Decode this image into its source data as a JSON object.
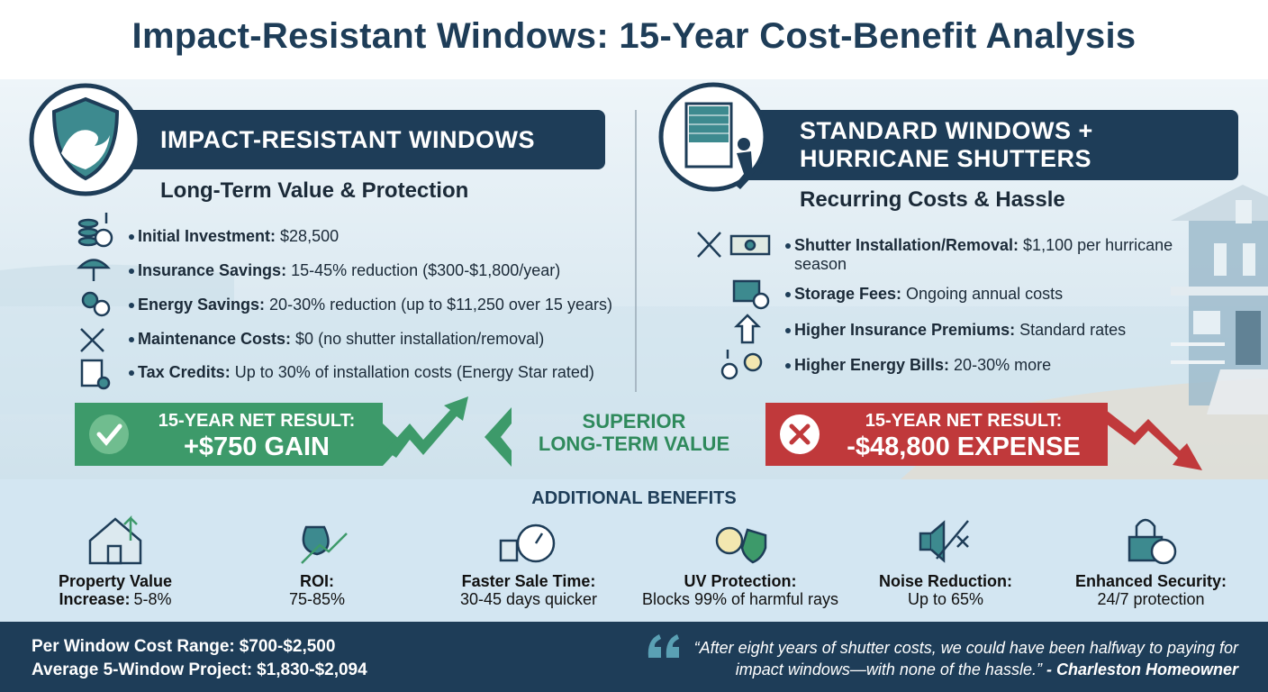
{
  "title": "Impact-Resistant Windows: 15-Year Cost-Benefit Analysis",
  "left": {
    "heading": "IMPACT-RESISTANT WINDOWS",
    "subheading": "Long-Term Value & Protection",
    "items": [
      {
        "label": "Initial Investment:",
        "text": "$28,500"
      },
      {
        "label": "Insurance Savings:",
        "text": "15-45% reduction ($300-$1,800/year)"
      },
      {
        "label": "Energy Savings:",
        "text": "20-30% reduction (up to $11,250 over 15 years)"
      },
      {
        "label": "Maintenance Costs:",
        "text": "$0 (no shutter installation/removal)"
      },
      {
        "label": "Tax Credits:",
        "text": "Up to 30% of installation costs (Energy Star rated)"
      }
    ],
    "result": {
      "label": "15-YEAR NET RESULT:",
      "value": "+$750 GAIN"
    }
  },
  "center": {
    "lines": [
      "SUPERIOR",
      "LONG-TERM VALUE"
    ]
  },
  "right": {
    "heading_lines": [
      "STANDARD WINDOWS +",
      "HURRICANE SHUTTERS"
    ],
    "subheading": "Recurring Costs & Hassle",
    "items": [
      {
        "label": "Shutter Installation/Removal:",
        "text": "$1,100 per hurricane season"
      },
      {
        "label": "Storage Fees:",
        "text": "Ongoing annual costs"
      },
      {
        "label": "Higher Insurance Premiums:",
        "text": "Standard rates"
      },
      {
        "label": "Higher Energy Bills:",
        "text": "20-30% more"
      }
    ],
    "result": {
      "label": "15-YEAR NET RESULT:",
      "value": "-$48,800 EXPENSE"
    }
  },
  "benefits": {
    "title": "ADDITIONAL BENEFITS",
    "items": [
      {
        "label": "Property Value Increase:",
        "value": "5-8%"
      },
      {
        "label": "ROI:",
        "value": "75-85%"
      },
      {
        "label": "Faster Sale Time:",
        "value": "30-45 days quicker"
      },
      {
        "label": "UV Protection:",
        "value": "Blocks 99% of harmful rays"
      },
      {
        "label": "Noise Reduction:",
        "value": "Up to 65%"
      },
      {
        "label": "Enhanced Security:",
        "value": "24/7 protection"
      }
    ]
  },
  "footer": {
    "costs": [
      {
        "label": "Per Window Cost Range:",
        "value": "$700-$2,500"
      },
      {
        "label": "Average 5-Window Project:",
        "value": "$1,830-$2,094"
      }
    ],
    "quote": "“After eight years of shutter costs, we could have been halfway to paying for impact windows—with none of the hassle.”",
    "attribution": "- Charleston Homeowner"
  }
}
